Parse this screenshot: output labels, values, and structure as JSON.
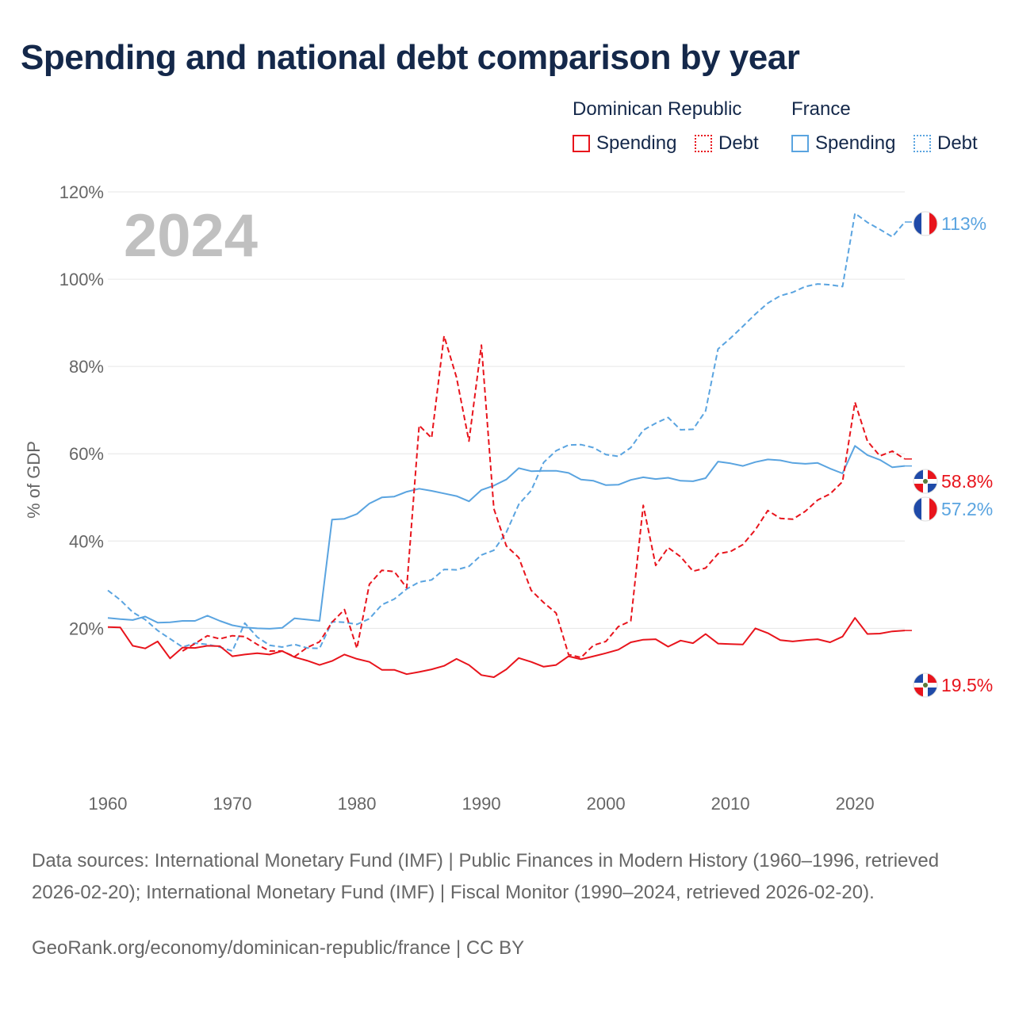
{
  "title": "Spending and national debt comparison by year",
  "legend": {
    "groups": [
      {
        "label": "Dominican Republic",
        "items": [
          {
            "label": "Spending",
            "style": "solid",
            "color": "#e8141c"
          },
          {
            "label": "Debt",
            "style": "dotted",
            "color": "#e8141c"
          }
        ]
      },
      {
        "label": "France",
        "items": [
          {
            "label": "Spending",
            "style": "solid",
            "color": "#5aa4e0"
          },
          {
            "label": "Debt",
            "style": "dotted",
            "color": "#5aa4e0"
          }
        ]
      }
    ]
  },
  "footer": {
    "sources": "Data sources: International Monetary Fund (IMF) | Public Finances in Modern History (1960–1996, retrieved 2026-02-20); International Monetary Fund (IMF) | Fiscal Monitor (1990–2024, retrieved 2026-02-20).",
    "credit": "GeoRank.org/economy/dominican-republic/france | CC BY"
  },
  "colors": {
    "dr": "#e8141c",
    "fr": "#5aa4e0",
    "grid": "#e6e6e6",
    "axis_text": "#666666",
    "year_watermark": "#c0c0c0"
  },
  "chart_data": {
    "type": "line",
    "year_label": "2024",
    "ylabel": "% of GDP",
    "xlim": [
      1960,
      2024
    ],
    "ylim": [
      -15,
      120
    ],
    "x_ticks": [
      1960,
      1970,
      1980,
      1990,
      2000,
      2010,
      2020
    ],
    "y_ticks": [
      20,
      40,
      60,
      80,
      100,
      120
    ],
    "y_tick_labels": [
      "20%",
      "40%",
      "60%",
      "80%",
      "100%",
      "120%"
    ],
    "series": [
      {
        "name": "Dominican Republic Spending",
        "country": "Dominican Republic",
        "key": "dr_spending",
        "style": "solid",
        "color": "#e8141c",
        "end_label": "19.5%",
        "points": [
          [
            1960,
            20.3
          ],
          [
            1961,
            20.2
          ],
          [
            1962,
            16.0
          ],
          [
            1963,
            15.4
          ],
          [
            1964,
            17.0
          ],
          [
            1965,
            13.1
          ],
          [
            1966,
            15.6
          ],
          [
            1967,
            15.5
          ],
          [
            1968,
            16.0
          ],
          [
            1969,
            15.9
          ],
          [
            1970,
            13.6
          ],
          [
            1971,
            14.0
          ],
          [
            1972,
            14.3
          ],
          [
            1973,
            14.0
          ],
          [
            1974,
            14.8
          ],
          [
            1975,
            13.4
          ],
          [
            1976,
            12.6
          ],
          [
            1977,
            11.6
          ],
          [
            1978,
            12.5
          ],
          [
            1979,
            14.0
          ],
          [
            1980,
            13.0
          ],
          [
            1981,
            12.3
          ],
          [
            1982,
            10.5
          ],
          [
            1983,
            10.5
          ],
          [
            1984,
            9.5
          ],
          [
            1985,
            10.0
          ],
          [
            1986,
            10.6
          ],
          [
            1987,
            11.4
          ],
          [
            1988,
            13.0
          ],
          [
            1989,
            11.6
          ],
          [
            1990,
            9.3
          ],
          [
            1991,
            8.8
          ],
          [
            1992,
            10.6
          ],
          [
            1993,
            13.2
          ],
          [
            1994,
            12.3
          ],
          [
            1995,
            11.2
          ],
          [
            1996,
            11.6
          ],
          [
            1997,
            13.6
          ],
          [
            1998,
            12.9
          ],
          [
            1999,
            13.6
          ],
          [
            2000,
            14.3
          ],
          [
            2001,
            15.1
          ],
          [
            2002,
            16.8
          ],
          [
            2003,
            17.4
          ],
          [
            2004,
            17.5
          ],
          [
            2005,
            15.8
          ],
          [
            2006,
            17.2
          ],
          [
            2007,
            16.6
          ],
          [
            2008,
            18.7
          ],
          [
            2009,
            16.5
          ],
          [
            2010,
            16.4
          ],
          [
            2011,
            16.3
          ],
          [
            2012,
            20.0
          ],
          [
            2013,
            18.9
          ],
          [
            2014,
            17.3
          ],
          [
            2015,
            17.0
          ],
          [
            2016,
            17.3
          ],
          [
            2017,
            17.5
          ],
          [
            2018,
            16.8
          ],
          [
            2019,
            18.1
          ],
          [
            2020,
            22.4
          ],
          [
            2021,
            18.7
          ],
          [
            2022,
            18.8
          ],
          [
            2023,
            19.3
          ],
          [
            2024,
            19.5
          ]
        ]
      },
      {
        "name": "Dominican Republic Debt",
        "country": "Dominican Republic",
        "key": "dr_debt",
        "style": "dashed",
        "color": "#e8141c",
        "end_label": "58.8%",
        "points": [
          [
            1966,
            14.8
          ],
          [
            1967,
            16.5
          ],
          [
            1968,
            18.3
          ],
          [
            1969,
            17.6
          ],
          [
            1970,
            18.3
          ],
          [
            1971,
            18.1
          ],
          [
            1972,
            16.3
          ],
          [
            1973,
            14.8
          ],
          [
            1974,
            14.8
          ],
          [
            1975,
            13.5
          ],
          [
            1976,
            15.6
          ],
          [
            1977,
            16.9
          ],
          [
            1978,
            21.4
          ],
          [
            1979,
            24.3
          ],
          [
            1980,
            15.4
          ],
          [
            1981,
            30.1
          ],
          [
            1982,
            33.3
          ],
          [
            1983,
            33.0
          ],
          [
            1984,
            29.3
          ],
          [
            1985,
            66.5
          ],
          [
            1986,
            63.6
          ],
          [
            1987,
            87.0
          ],
          [
            1988,
            77.5
          ],
          [
            1989,
            62.9
          ],
          [
            1990,
            84.9
          ],
          [
            1991,
            47.4
          ],
          [
            1992,
            38.9
          ],
          [
            1993,
            36.2
          ],
          [
            1994,
            28.7
          ],
          [
            1995,
            25.9
          ],
          [
            1996,
            23.5
          ],
          [
            1997,
            14.0
          ],
          [
            1998,
            13.3
          ],
          [
            1999,
            16.1
          ],
          [
            2000,
            17.0
          ],
          [
            2001,
            20.4
          ],
          [
            2002,
            21.7
          ],
          [
            2003,
            48.2
          ],
          [
            2004,
            34.4
          ],
          [
            2005,
            38.5
          ],
          [
            2006,
            36.4
          ],
          [
            2007,
            33.1
          ],
          [
            2008,
            33.8
          ],
          [
            2009,
            37.1
          ],
          [
            2010,
            37.6
          ],
          [
            2011,
            39.2
          ],
          [
            2012,
            42.6
          ],
          [
            2013,
            47.0
          ],
          [
            2014,
            45.2
          ],
          [
            2015,
            45.0
          ],
          [
            2016,
            46.8
          ],
          [
            2017,
            49.4
          ],
          [
            2018,
            50.8
          ],
          [
            2019,
            53.6
          ],
          [
            2020,
            71.8
          ],
          [
            2021,
            62.9
          ],
          [
            2022,
            59.5
          ],
          [
            2023,
            60.6
          ],
          [
            2024,
            58.8
          ]
        ]
      },
      {
        "name": "France Spending",
        "country": "France",
        "key": "fr_spending",
        "style": "solid",
        "color": "#5aa4e0",
        "end_label": "57.2%",
        "points": [
          [
            1960,
            22.4
          ],
          [
            1961,
            22.1
          ],
          [
            1962,
            21.9
          ],
          [
            1963,
            22.7
          ],
          [
            1964,
            21.3
          ],
          [
            1965,
            21.4
          ],
          [
            1966,
            21.7
          ],
          [
            1967,
            21.7
          ],
          [
            1968,
            22.9
          ],
          [
            1969,
            21.7
          ],
          [
            1970,
            20.7
          ],
          [
            1971,
            20.2
          ],
          [
            1972,
            20.0
          ],
          [
            1973,
            19.9
          ],
          [
            1974,
            20.1
          ],
          [
            1975,
            22.3
          ],
          [
            1976,
            22.0
          ],
          [
            1977,
            21.7
          ],
          [
            1978,
            44.9
          ],
          [
            1979,
            45.1
          ],
          [
            1980,
            46.2
          ],
          [
            1981,
            48.6
          ],
          [
            1982,
            50.0
          ],
          [
            1983,
            50.2
          ],
          [
            1984,
            51.3
          ],
          [
            1985,
            52.0
          ],
          [
            1986,
            51.5
          ],
          [
            1987,
            50.9
          ],
          [
            1988,
            50.3
          ],
          [
            1989,
            49.1
          ],
          [
            1990,
            51.7
          ],
          [
            1991,
            52.7
          ],
          [
            1992,
            54.1
          ],
          [
            1993,
            56.7
          ],
          [
            1994,
            56.0
          ],
          [
            1995,
            56.1
          ],
          [
            1996,
            56.1
          ],
          [
            1997,
            55.6
          ],
          [
            1998,
            54.1
          ],
          [
            1999,
            53.8
          ],
          [
            2000,
            52.8
          ],
          [
            2001,
            52.9
          ],
          [
            2002,
            54.0
          ],
          [
            2003,
            54.6
          ],
          [
            2004,
            54.2
          ],
          [
            2005,
            54.5
          ],
          [
            2006,
            53.8
          ],
          [
            2007,
            53.7
          ],
          [
            2008,
            54.4
          ],
          [
            2009,
            58.2
          ],
          [
            2010,
            57.8
          ],
          [
            2011,
            57.2
          ],
          [
            2012,
            58.1
          ],
          [
            2013,
            58.7
          ],
          [
            2014,
            58.5
          ],
          [
            2015,
            57.9
          ],
          [
            2016,
            57.7
          ],
          [
            2017,
            57.9
          ],
          [
            2018,
            56.6
          ],
          [
            2019,
            55.5
          ],
          [
            2020,
            61.8
          ],
          [
            2021,
            59.7
          ],
          [
            2022,
            58.6
          ],
          [
            2023,
            56.9
          ],
          [
            2024,
            57.2
          ]
        ]
      },
      {
        "name": "France Debt",
        "country": "France",
        "key": "fr_debt",
        "style": "dashed",
        "color": "#5aa4e0",
        "end_label": "113%",
        "points": [
          [
            1960,
            28.7
          ],
          [
            1961,
            26.5
          ],
          [
            1962,
            23.7
          ],
          [
            1963,
            22.0
          ],
          [
            1964,
            19.5
          ],
          [
            1965,
            17.6
          ],
          [
            1966,
            15.7
          ],
          [
            1967,
            16.6
          ],
          [
            1968,
            16.3
          ],
          [
            1969,
            15.7
          ],
          [
            1970,
            14.8
          ],
          [
            1971,
            21.2
          ],
          [
            1972,
            18.0
          ],
          [
            1973,
            16.1
          ],
          [
            1974,
            15.7
          ],
          [
            1975,
            16.3
          ],
          [
            1976,
            15.5
          ],
          [
            1977,
            15.4
          ],
          [
            1978,
            21.5
          ],
          [
            1979,
            21.4
          ],
          [
            1980,
            20.9
          ],
          [
            1981,
            22.2
          ],
          [
            1982,
            25.4
          ],
          [
            1983,
            26.7
          ],
          [
            1984,
            29.0
          ],
          [
            1985,
            30.6
          ],
          [
            1986,
            31.1
          ],
          [
            1987,
            33.5
          ],
          [
            1988,
            33.4
          ],
          [
            1989,
            34.2
          ],
          [
            1990,
            36.8
          ],
          [
            1991,
            37.9
          ],
          [
            1992,
            42.0
          ],
          [
            1993,
            48.4
          ],
          [
            1994,
            51.6
          ],
          [
            1995,
            58.0
          ],
          [
            1996,
            60.7
          ],
          [
            1997,
            62.0
          ],
          [
            1998,
            62.1
          ],
          [
            1999,
            61.4
          ],
          [
            2000,
            59.8
          ],
          [
            2001,
            59.4
          ],
          [
            2002,
            61.4
          ],
          [
            2003,
            65.4
          ],
          [
            2004,
            67.0
          ],
          [
            2005,
            68.3
          ],
          [
            2006,
            65.5
          ],
          [
            2007,
            65.6
          ],
          [
            2008,
            69.8
          ],
          [
            2009,
            84.0
          ],
          [
            2010,
            86.5
          ],
          [
            2011,
            89.2
          ],
          [
            2012,
            92.0
          ],
          [
            2013,
            94.5
          ],
          [
            2014,
            96.2
          ],
          [
            2015,
            97.0
          ],
          [
            2016,
            98.3
          ],
          [
            2017,
            98.9
          ],
          [
            2018,
            98.7
          ],
          [
            2019,
            98.3
          ],
          [
            2020,
            115.1
          ],
          [
            2021,
            113.0
          ],
          [
            2022,
            111.4
          ],
          [
            2023,
            109.7
          ],
          [
            2024,
            113.1
          ]
        ]
      }
    ]
  }
}
